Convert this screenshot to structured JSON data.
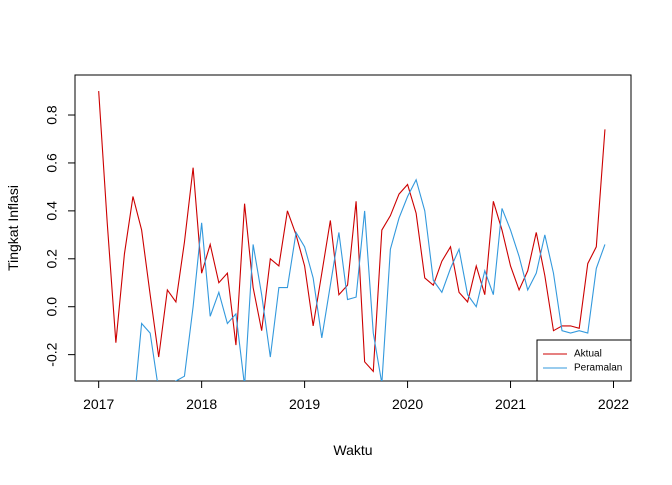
{
  "chart_data": {
    "type": "line",
    "xlabel": "Waktu",
    "ylabel": "Tingkat Inflasi",
    "x": [
      2017,
      2017.083,
      2017.167,
      2017.25,
      2017.333,
      2017.417,
      2017.5,
      2017.583,
      2017.667,
      2017.75,
      2017.833,
      2017.917,
      2018,
      2018.083,
      2018.167,
      2018.25,
      2018.333,
      2018.417,
      2018.5,
      2018.583,
      2018.667,
      2018.75,
      2018.833,
      2018.917,
      2019,
      2019.083,
      2019.167,
      2019.25,
      2019.333,
      2019.417,
      2019.5,
      2019.583,
      2019.667,
      2019.75,
      2019.833,
      2019.917,
      2020,
      2020.083,
      2020.167,
      2020.25,
      2020.333,
      2020.417,
      2020.5,
      2020.583,
      2020.667,
      2020.75,
      2020.833,
      2020.917,
      2021,
      2021.083,
      2021.167,
      2021.25,
      2021.333,
      2021.417,
      2021.5,
      2021.583,
      2021.667,
      2021.75,
      2021.833,
      2021.917
    ],
    "series": [
      {
        "name": "Aktual",
        "color": "#cc0000",
        "values": [
          0.9,
          0.35,
          -0.15,
          0.22,
          0.46,
          0.32,
          0.05,
          -0.21,
          0.07,
          0.02,
          0.27,
          0.58,
          0.14,
          0.26,
          0.1,
          0.14,
          -0.16,
          0.43,
          0.08,
          -0.1,
          0.2,
          0.17,
          0.4,
          0.3,
          0.17,
          -0.08,
          0.14,
          0.36,
          0.05,
          0.09,
          0.44,
          -0.23,
          -0.27,
          0.32,
          0.38,
          0.47,
          0.51,
          0.39,
          0.12,
          0.09,
          0.19,
          0.25,
          0.06,
          0.02,
          0.17,
          0.05,
          0.44,
          0.32,
          0.17,
          0.07,
          0.15,
          0.31,
          0.13,
          -0.1,
          -0.08,
          -0.08,
          -0.09,
          0.18,
          0.25,
          0.74
        ]
      },
      {
        "name": "Peramalan",
        "color": "#3399dd",
        "values": [
          null,
          null,
          null,
          null,
          -0.45,
          -0.07,
          -0.11,
          -0.35,
          -0.33,
          -0.31,
          -0.29,
          0.0,
          0.35,
          -0.04,
          0.06,
          -0.07,
          -0.03,
          -0.33,
          0.26,
          0.05,
          -0.21,
          0.08,
          0.08,
          0.31,
          0.25,
          0.12,
          -0.13,
          0.09,
          0.31,
          0.03,
          0.04,
          0.4,
          -0.11,
          -0.32,
          0.24,
          0.37,
          0.46,
          0.53,
          0.4,
          0.11,
          0.06,
          0.16,
          0.24,
          0.05,
          0.0,
          0.15,
          0.05,
          0.41,
          0.32,
          0.21,
          0.07,
          0.14,
          0.3,
          0.14,
          -0.1,
          -0.11,
          -0.1,
          -0.11,
          0.16,
          0.26
        ]
      }
    ],
    "xlim": [
      2016.77,
      2022.17
    ],
    "xticks": [
      2017,
      2018,
      2019,
      2020,
      2021,
      2022
    ],
    "ylim": [
      -0.31,
      0.967
    ],
    "yticks": [
      -0.2,
      {
        "value": 0,
        "label": "0.0"
      },
      0.2,
      0.4,
      0.6,
      0.8
    ],
    "legend": "bottom-right"
  }
}
